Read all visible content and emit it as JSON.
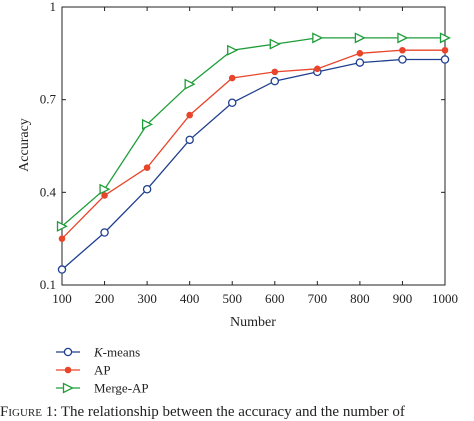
{
  "chart_data": {
    "type": "line",
    "xlabel": "Number",
    "ylabel": "Accuracy",
    "x": [
      100,
      200,
      300,
      400,
      500,
      600,
      700,
      800,
      900,
      1000
    ],
    "xlim": [
      100,
      1000
    ],
    "ylim": [
      0.1,
      1.0
    ],
    "xticks": [
      "100",
      "200",
      "300",
      "400",
      "500",
      "600",
      "700",
      "800",
      "900",
      "1000"
    ],
    "yticks": [
      "0.1",
      "0.4",
      "0.7",
      "1"
    ],
    "ytick_values": [
      0.1,
      0.4,
      0.7,
      1.0
    ],
    "legend_position": "bottom-left, below plot",
    "series": [
      {
        "name_italic": "K",
        "name_rest": "-means",
        "color": "#1f3f8f",
        "marker": "circle",
        "values": [
          0.15,
          0.27,
          0.41,
          0.57,
          0.69,
          0.76,
          0.79,
          0.82,
          0.83,
          0.83
        ]
      },
      {
        "name": "AP",
        "color": "#e8452a",
        "marker": "dot",
        "values": [
          0.25,
          0.39,
          0.48,
          0.65,
          0.77,
          0.79,
          0.8,
          0.85,
          0.86,
          0.86
        ]
      },
      {
        "name": "Merge-AP",
        "color": "#1e9e3a",
        "marker": "triangle",
        "values": [
          0.29,
          0.41,
          0.62,
          0.75,
          0.86,
          0.88,
          0.9,
          0.9,
          0.9,
          0.9
        ]
      }
    ]
  },
  "caption": {
    "label": "Figure 1:",
    "text": "The relationship between the accuracy and the number of"
  }
}
